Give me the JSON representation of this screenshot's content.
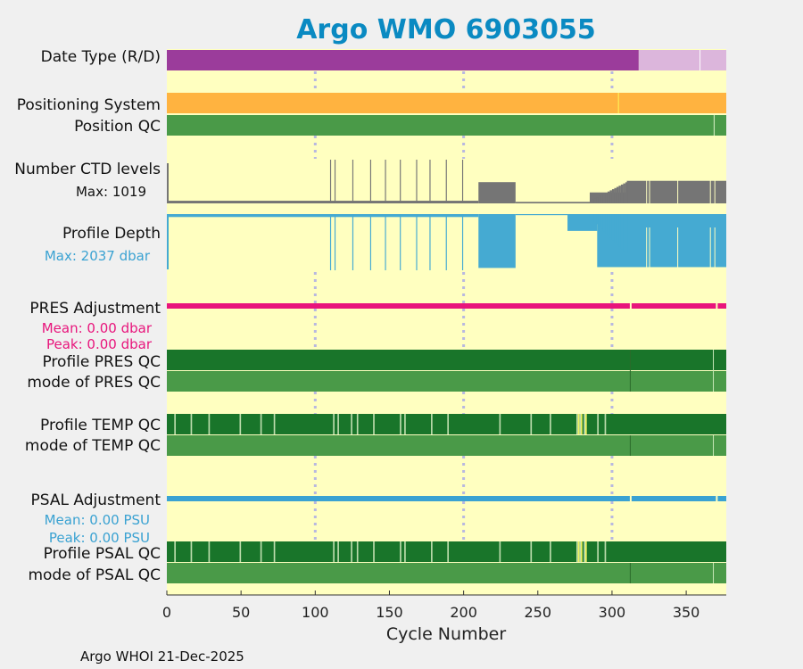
{
  "chart_data": {
    "type": "heatmap",
    "title": "Argo WMO 6903055",
    "xlabel": "Cycle Number",
    "xlim": [
      0,
      377
    ],
    "xticks": [
      0,
      50,
      100,
      150,
      200,
      250,
      300,
      350
    ],
    "grid_lines_x": [
      100,
      200,
      300
    ],
    "footer": "Argo WHOI 21-Dec-2025",
    "colors": {
      "title": "#0a8ac2",
      "background": "#ffffc0",
      "realtime_purple": "#9b3c9b",
      "delayed_lavender": "#dcb6dc",
      "gps_orange": "#ffb340",
      "qc_good": "#4a9a48",
      "qc_dark": "#19752a",
      "qc_light": "#bcdcac",
      "qc_yellow": "#f0f060",
      "ctd_gray": "#757575",
      "depth_blue": "#45aad2",
      "pres_magenta": "#e8157c",
      "psal_blue": "#3aa2d2",
      "grid": "#b8b8e0"
    },
    "rows": {
      "date_type": {
        "label": "Date Type (R/D)",
        "realtime_until": 318
      },
      "positioning": {
        "label": "Positioning System"
      },
      "position_qc": {
        "label": "Position QC"
      },
      "ctd": {
        "label": "Number CTD levels",
        "note": "Max: 1019",
        "max": 1019
      },
      "depth": {
        "label": "Profile Depth",
        "note": "Max: 2037 dbar",
        "max": 2037
      },
      "pres_adj": {
        "label": "PRES Adjustment",
        "mean": "Mean: 0.00 dbar",
        "peak": "Peak: 0.00 dbar"
      },
      "pres_qc": {
        "label": "Profile PRES QC"
      },
      "pres_mode": {
        "label": "mode of PRES QC"
      },
      "temp_qc": {
        "label": "Profile TEMP QC"
      },
      "temp_mode": {
        "label": "mode of TEMP QC"
      },
      "psal_adj": {
        "label": "PSAL Adjustment",
        "mean": "Mean: 0.00 PSU",
        "peak": "Peak: 0.00 PSU"
      },
      "psal_qc": {
        "label": "Profile PSAL QC"
      },
      "psal_mode": {
        "label": "mode of PSAL QC"
      }
    },
    "ctd_segments": [
      {
        "from": 0,
        "to": 210,
        "levels": 60
      },
      {
        "from": 210,
        "to": 235,
        "levels": 485
      },
      {
        "from": 235,
        "to": 285,
        "levels": 35
      },
      {
        "from": 285,
        "to": 310,
        "levels": 250
      },
      {
        "from": 310,
        "to": 377,
        "levels": 515
      }
    ],
    "ctd_spikes": [
      110,
      113,
      125,
      137,
      147,
      157,
      168,
      177,
      188,
      199
    ],
    "depth_segments": [
      {
        "from": 0,
        "to": 210,
        "depth": 70
      },
      {
        "from": 210,
        "to": 235,
        "depth": 1280
      },
      {
        "from": 235,
        "to": 270,
        "depth": 25
      },
      {
        "from": 270,
        "to": 290,
        "depth": 400
      },
      {
        "from": 290,
        "to": 377,
        "depth": 1260
      }
    ],
    "depth_spikes": [
      110,
      113,
      125,
      137,
      147,
      157,
      168,
      177,
      188,
      199
    ],
    "temp_light_cycles": [
      5,
      16,
      28,
      49,
      63,
      72,
      112,
      115,
      124,
      128,
      139,
      157,
      160,
      178,
      189,
      224,
      245,
      258,
      276,
      278,
      281,
      290,
      295
    ],
    "temp_yellow_cycles": [
      277,
      279,
      282
    ],
    "psal_light_cycles": [
      5,
      16,
      28,
      49,
      63,
      72,
      112,
      115,
      124,
      128,
      139,
      157,
      160,
      178,
      189,
      224,
      245,
      258,
      276,
      278,
      281,
      290,
      295
    ],
    "psal_yellow_cycles": [
      277,
      279,
      282
    ],
    "pres_gaps": [
      312,
      370
    ],
    "psal_gaps": [
      312,
      370
    ],
    "qc_divider_cycles": [
      312,
      368
    ]
  }
}
